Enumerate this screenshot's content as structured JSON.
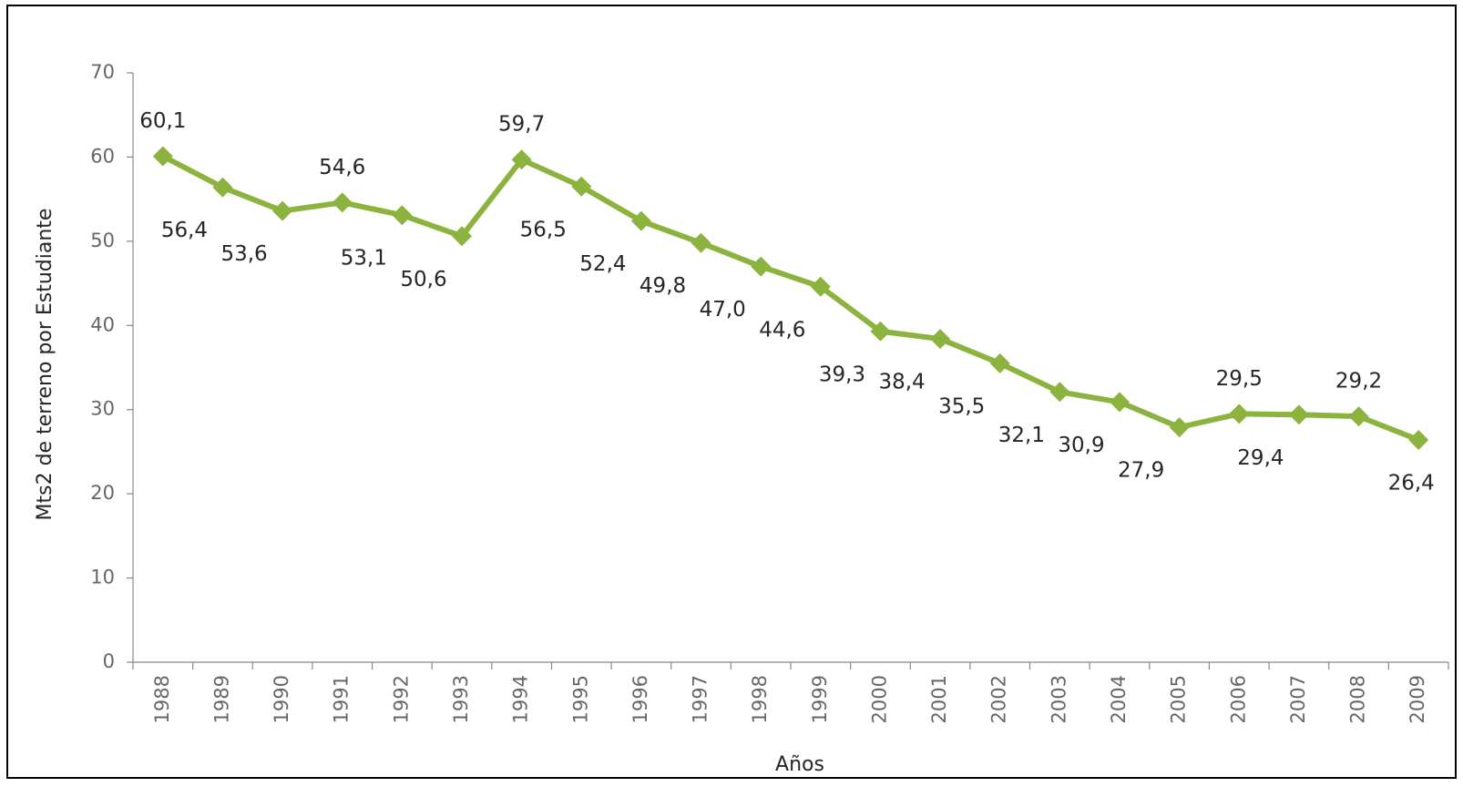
{
  "chart_data": {
    "type": "line",
    "y_axis_label": "Mts2 de terreno por Estudiante",
    "x_axis_label": "Años",
    "categories": [
      "1988",
      "1989",
      "1990",
      "1991",
      "1992",
      "1993",
      "1994",
      "1995",
      "1996",
      "1997",
      "1998",
      "1999",
      "2000",
      "2001",
      "2002",
      "2003",
      "2004",
      "2005",
      "2006",
      "2007",
      "2008",
      "2009"
    ],
    "series": [
      {
        "color": "#8db33f",
        "values": [
          60.1,
          56.4,
          53.6,
          54.6,
          53.1,
          50.6,
          59.7,
          56.5,
          52.4,
          49.8,
          47.0,
          44.6,
          39.3,
          38.4,
          35.5,
          32.1,
          30.9,
          27.9,
          29.5,
          29.4,
          29.2,
          26.4
        ],
        "value_labels": [
          "60,1",
          "56,4",
          "53,6",
          "54,6",
          "53,1",
          "50,6",
          "59,7",
          "56,5",
          "52,4",
          "49,8",
          "47,0",
          "44,6",
          "39,3",
          "38,4",
          "35,5",
          "32,1",
          "30,9",
          "27,9",
          "29,5",
          "29,4",
          "29,2",
          "26,4"
        ]
      }
    ],
    "ylim": [
      0,
      70
    ],
    "yticks": [
      0,
      10,
      20,
      30,
      40,
      50,
      60,
      70
    ]
  }
}
